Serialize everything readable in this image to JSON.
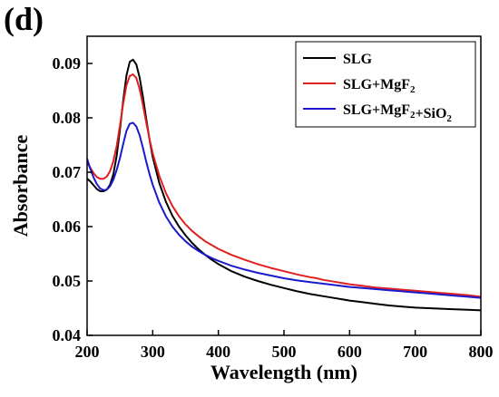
{
  "panel_label": "(d)",
  "chart_data": {
    "type": "line",
    "title": "",
    "xlabel": "Wavelength (nm)",
    "ylabel": "Absorbance",
    "xlim": [
      200,
      800
    ],
    "ylim": [
      0.04,
      0.095
    ],
    "xticks": [
      200,
      300,
      400,
      500,
      600,
      700,
      800
    ],
    "yticks": [
      0.04,
      0.05,
      0.06,
      0.07,
      0.08,
      0.09
    ],
    "ytick_labels": [
      "0.04",
      "0.05",
      "0.06",
      "0.07",
      "0.08",
      "0.09"
    ],
    "grid": false,
    "legend_position": "top-right",
    "series": [
      {
        "name": "SLG",
        "legend_parts": [
          {
            "t": "SLG"
          }
        ],
        "color": "#000000",
        "points": [
          [
            200,
            0.0688
          ],
          [
            205,
            0.0683
          ],
          [
            210,
            0.0676
          ],
          [
            215,
            0.0669
          ],
          [
            220,
            0.0665
          ],
          [
            225,
            0.0665
          ],
          [
            230,
            0.0668
          ],
          [
            235,
            0.0677
          ],
          [
            240,
            0.0696
          ],
          [
            245,
            0.073
          ],
          [
            250,
            0.0778
          ],
          [
            255,
            0.0832
          ],
          [
            260,
            0.0878
          ],
          [
            265,
            0.0903
          ],
          [
            270,
            0.0907
          ],
          [
            275,
            0.0898
          ],
          [
            280,
            0.0874
          ],
          [
            285,
            0.0839
          ],
          [
            290,
            0.0799
          ],
          [
            295,
            0.0761
          ],
          [
            300,
            0.0728
          ],
          [
            310,
            0.068
          ],
          [
            320,
            0.0646
          ],
          [
            330,
            0.062
          ],
          [
            340,
            0.06
          ],
          [
            350,
            0.0584
          ],
          [
            360,
            0.057
          ],
          [
            370,
            0.0558
          ],
          [
            380,
            0.0548
          ],
          [
            390,
            0.0539
          ],
          [
            400,
            0.0531
          ],
          [
            420,
            0.0518
          ],
          [
            440,
            0.0508
          ],
          [
            460,
            0.05
          ],
          [
            480,
            0.0493
          ],
          [
            500,
            0.0487
          ],
          [
            520,
            0.0481
          ],
          [
            540,
            0.0476
          ],
          [
            560,
            0.0472
          ],
          [
            580,
            0.0468
          ],
          [
            600,
            0.0464
          ],
          [
            620,
            0.0461
          ],
          [
            640,
            0.0458
          ],
          [
            660,
            0.0455
          ],
          [
            680,
            0.0453
          ],
          [
            700,
            0.0451
          ],
          [
            720,
            0.045
          ],
          [
            740,
            0.0449
          ],
          [
            760,
            0.0448
          ],
          [
            780,
            0.0447
          ],
          [
            800,
            0.0446
          ]
        ]
      },
      {
        "name": "SLG+MgF2",
        "legend_parts": [
          {
            "t": "SLG+MgF"
          },
          {
            "t": "2",
            "sub": true
          }
        ],
        "color": "#e02020",
        "points": [
          [
            200,
            0.0718
          ],
          [
            205,
            0.0708
          ],
          [
            210,
            0.0698
          ],
          [
            215,
            0.0691
          ],
          [
            220,
            0.0688
          ],
          [
            225,
            0.0688
          ],
          [
            230,
            0.0692
          ],
          [
            235,
            0.0702
          ],
          [
            240,
            0.072
          ],
          [
            245,
            0.0748
          ],
          [
            250,
            0.0786
          ],
          [
            255,
            0.0826
          ],
          [
            260,
            0.086
          ],
          [
            265,
            0.0877
          ],
          [
            270,
            0.088
          ],
          [
            275,
            0.0873
          ],
          [
            280,
            0.0853
          ],
          [
            285,
            0.0824
          ],
          [
            290,
            0.0792
          ],
          [
            295,
            0.0762
          ],
          [
            300,
            0.0735
          ],
          [
            310,
            0.0693
          ],
          [
            320,
            0.0662
          ],
          [
            330,
            0.0638
          ],
          [
            340,
            0.0619
          ],
          [
            350,
            0.0604
          ],
          [
            360,
            0.0592
          ],
          [
            370,
            0.0582
          ],
          [
            380,
            0.0573
          ],
          [
            390,
            0.0566
          ],
          [
            400,
            0.0559
          ],
          [
            420,
            0.0548
          ],
          [
            440,
            0.0539
          ],
          [
            460,
            0.0531
          ],
          [
            480,
            0.0524
          ],
          [
            500,
            0.0518
          ],
          [
            520,
            0.0512
          ],
          [
            540,
            0.0507
          ],
          [
            550,
            0.0505
          ],
          [
            560,
            0.0502
          ],
          [
            580,
            0.0498
          ],
          [
            600,
            0.0494
          ],
          [
            620,
            0.0491
          ],
          [
            640,
            0.0488
          ],
          [
            660,
            0.0486
          ],
          [
            680,
            0.0484
          ],
          [
            700,
            0.0482
          ],
          [
            720,
            0.048
          ],
          [
            740,
            0.0478
          ],
          [
            760,
            0.0476
          ],
          [
            780,
            0.0474
          ],
          [
            800,
            0.0471
          ]
        ]
      },
      {
        "name": "SLG+MgF2+SiO2",
        "legend_parts": [
          {
            "t": "SLG+MgF"
          },
          {
            "t": "2",
            "sub": true
          },
          {
            "t": "+SiO"
          },
          {
            "t": "2",
            "sub": true
          }
        ],
        "color": "#1a1acc",
        "points": [
          [
            200,
            0.0725
          ],
          [
            205,
            0.0706
          ],
          [
            210,
            0.069
          ],
          [
            215,
            0.0678
          ],
          [
            220,
            0.067
          ],
          [
            225,
            0.0667
          ],
          [
            230,
            0.0668
          ],
          [
            235,
            0.0674
          ],
          [
            240,
            0.0686
          ],
          [
            245,
            0.0704
          ],
          [
            250,
            0.0726
          ],
          [
            255,
            0.0752
          ],
          [
            260,
            0.0776
          ],
          [
            265,
            0.0789
          ],
          [
            270,
            0.0791
          ],
          [
            275,
            0.0784
          ],
          [
            280,
            0.0768
          ],
          [
            285,
            0.0745
          ],
          [
            290,
            0.072
          ],
          [
            295,
            0.0697
          ],
          [
            300,
            0.0677
          ],
          [
            310,
            0.0644
          ],
          [
            320,
            0.0619
          ],
          [
            330,
            0.06
          ],
          [
            340,
            0.0585
          ],
          [
            350,
            0.0573
          ],
          [
            360,
            0.0563
          ],
          [
            370,
            0.0555
          ],
          [
            380,
            0.0548
          ],
          [
            390,
            0.0542
          ],
          [
            400,
            0.0537
          ],
          [
            420,
            0.0528
          ],
          [
            440,
            0.0521
          ],
          [
            460,
            0.0515
          ],
          [
            480,
            0.051
          ],
          [
            500,
            0.0505
          ],
          [
            520,
            0.0501
          ],
          [
            540,
            0.0498
          ],
          [
            560,
            0.0495
          ],
          [
            580,
            0.0492
          ],
          [
            600,
            0.0489
          ],
          [
            620,
            0.0487
          ],
          [
            640,
            0.0485
          ],
          [
            660,
            0.0483
          ],
          [
            680,
            0.0481
          ],
          [
            700,
            0.0479
          ],
          [
            720,
            0.0477
          ],
          [
            740,
            0.0475
          ],
          [
            760,
            0.0473
          ],
          [
            780,
            0.0471
          ],
          [
            800,
            0.0469
          ]
        ]
      }
    ]
  }
}
